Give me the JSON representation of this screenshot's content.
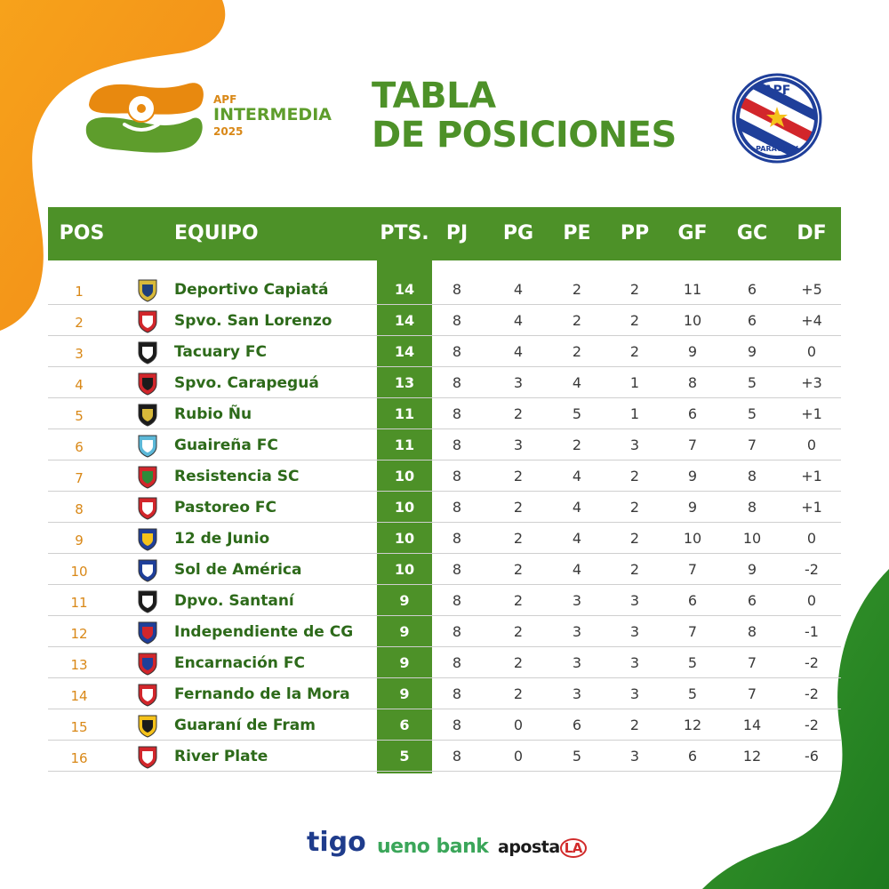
{
  "header": {
    "brand_line1": "APF",
    "brand_line2": "INTERMEDIA",
    "brand_line3": "2025",
    "title_line1": "TABLA",
    "title_line2": "DE POSICIONES",
    "badge_top": "APF",
    "badge_bottom": "PARAGUAY"
  },
  "columns": {
    "pos": "POS",
    "team": "EQUIPO",
    "pts": "PTS.",
    "pj": "PJ",
    "pg": "PG",
    "pe": "PE",
    "pp": "PP",
    "gf": "GF",
    "gc": "GC",
    "df": "DF"
  },
  "rows": [
    {
      "pos": "1",
      "team": "Deportivo Capiatá",
      "pts": "14",
      "pj": "8",
      "pg": "4",
      "pe": "2",
      "pp": "2",
      "gf": "11",
      "gc": "6",
      "df": "+5",
      "crest": "capiata-crest"
    },
    {
      "pos": "2",
      "team": "Spvo. San Lorenzo",
      "pts": "14",
      "pj": "8",
      "pg": "4",
      "pe": "2",
      "pp": "2",
      "gf": "10",
      "gc": "6",
      "df": "+4",
      "crest": "san-lorenzo-crest"
    },
    {
      "pos": "3",
      "team": "Tacuary FC",
      "pts": "14",
      "pj": "8",
      "pg": "4",
      "pe": "2",
      "pp": "2",
      "gf": "9",
      "gc": "9",
      "df": "0",
      "crest": "tacuary-crest"
    },
    {
      "pos": "4",
      "team": "Spvo. Carapeguá",
      "pts": "13",
      "pj": "8",
      "pg": "3",
      "pe": "4",
      "pp": "1",
      "gf": "8",
      "gc": "5",
      "df": "+3",
      "crest": "carapegua-crest"
    },
    {
      "pos": "5",
      "team": "Rubio Ñu",
      "pts": "11",
      "pj": "8",
      "pg": "2",
      "pe": "5",
      "pp": "1",
      "gf": "6",
      "gc": "5",
      "df": "+1",
      "crest": "rubio-nu-crest"
    },
    {
      "pos": "6",
      "team": "Guaireña FC",
      "pts": "11",
      "pj": "8",
      "pg": "3",
      "pe": "2",
      "pp": "3",
      "gf": "7",
      "gc": "7",
      "df": "0",
      "crest": "guairena-crest"
    },
    {
      "pos": "7",
      "team": "Resistencia SC",
      "pts": "10",
      "pj": "8",
      "pg": "2",
      "pe": "4",
      "pp": "2",
      "gf": "9",
      "gc": "8",
      "df": "+1",
      "crest": "resistencia-crest"
    },
    {
      "pos": "8",
      "team": "Pastoreo FC",
      "pts": "10",
      "pj": "8",
      "pg": "2",
      "pe": "4",
      "pp": "2",
      "gf": "9",
      "gc": "8",
      "df": "+1",
      "crest": "pastoreo-crest"
    },
    {
      "pos": "9",
      "team": "12 de Junio",
      "pts": "10",
      "pj": "8",
      "pg": "2",
      "pe": "4",
      "pp": "2",
      "gf": "10",
      "gc": "10",
      "df": "0",
      "crest": "12-de-junio-crest"
    },
    {
      "pos": "10",
      "team": "Sol de América",
      "pts": "10",
      "pj": "8",
      "pg": "2",
      "pe": "4",
      "pp": "2",
      "gf": "7",
      "gc": "9",
      "df": "-2",
      "crest": "sol-de-america-crest"
    },
    {
      "pos": "11",
      "team": "Dpvo. Santaní",
      "pts": "9",
      "pj": "8",
      "pg": "2",
      "pe": "3",
      "pp": "3",
      "gf": "6",
      "gc": "6",
      "df": "0",
      "crest": "santani-crest"
    },
    {
      "pos": "12",
      "team": "Independiente de CG",
      "pts": "9",
      "pj": "8",
      "pg": "2",
      "pe": "3",
      "pp": "3",
      "gf": "7",
      "gc": "8",
      "df": "-1",
      "crest": "independiente-crest"
    },
    {
      "pos": "13",
      "team": "Encarnación FC",
      "pts": "9",
      "pj": "8",
      "pg": "2",
      "pe": "3",
      "pp": "3",
      "gf": "5",
      "gc": "7",
      "df": "-2",
      "crest": "encarnacion-crest"
    },
    {
      "pos": "14",
      "team": "Fernando de la Mora",
      "pts": "9",
      "pj": "8",
      "pg": "2",
      "pe": "3",
      "pp": "3",
      "gf": "5",
      "gc": "7",
      "df": "-2",
      "crest": "fernando-de-la-mora-crest"
    },
    {
      "pos": "15",
      "team": "Guaraní de Fram",
      "pts": "6",
      "pj": "8",
      "pg": "0",
      "pe": "6",
      "pp": "2",
      "gf": "12",
      "gc": "14",
      "df": "-2",
      "crest": "guarani-de-fram-crest"
    },
    {
      "pos": "16",
      "team": "River Plate",
      "pts": "5",
      "pj": "8",
      "pg": "0",
      "pe": "5",
      "pp": "3",
      "gf": "6",
      "gc": "12",
      "df": "-6",
      "crest": "river-plate-crest"
    }
  ],
  "sponsors": {
    "tigo": "tigo",
    "ueno": "ueno bank",
    "aposta": "aposta",
    "aposta_la": "LA"
  },
  "colors": {
    "green": "#4d9128",
    "orange": "#f39a1a",
    "team_text": "#2d6a1a",
    "pos_text": "#d98817"
  }
}
